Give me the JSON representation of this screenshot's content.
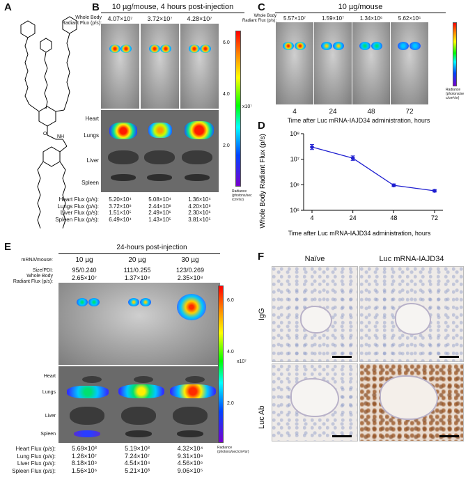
{
  "panels": {
    "A": "A",
    "B": "B",
    "C": "C",
    "D": "D",
    "E": "E",
    "F": "F"
  },
  "panel_b": {
    "title": "10 µg/mouse, 4 hours post-injection",
    "whole_body_label": "Whole Body\nRadiant Flux (p/s):",
    "whole_body_values": [
      "4.07×10⁷",
      "3.72×10⁷",
      "4.28×10⁷"
    ],
    "organs": [
      "Heart",
      "Lungs",
      "Liver",
      "Spleen"
    ],
    "colorbar_ticks": [
      "6.0",
      "4.0",
      "2.0"
    ],
    "colorbar_unit": "x10⁷",
    "colorbar_caption": "Radiance\n(photons/sec\n/cm²/sr)",
    "flux_rows": [
      {
        "label": "Heart Flux (p/s):",
        "values": [
          "5.20×10⁴",
          "5.08×10⁴",
          "1.36×10⁴"
        ]
      },
      {
        "label": "Lungs Flux (p/s):",
        "values": [
          "3.72×10⁸",
          "2.44×10⁸",
          "4.20×10⁸"
        ]
      },
      {
        "label": "Liver Flux (p/s):",
        "values": [
          "1.51×10⁵",
          "2.49×10⁶",
          "2.30×10⁶"
        ]
      },
      {
        "label": "Spleen Flux (p/s):",
        "values": [
          "6.49×10⁴",
          "1.43×10⁵",
          "3.81×10⁵"
        ]
      }
    ]
  },
  "panel_c": {
    "title": "10 µg/mouse",
    "whole_body_label": "Whole Body\nRadiant Flux (p/s):",
    "whole_body_values": [
      "5.57×10⁷",
      "1.59×10⁷",
      "1.34×10⁶",
      "5.62×10⁵"
    ],
    "timepoints": [
      "4",
      "24",
      "48",
      "72"
    ],
    "xlabel": "Time after Luc mRNA-IAJD34 administration, hours",
    "colorbar_caption": "Radiance\n(photons/se\nc/cm²/sr)"
  },
  "panel_e": {
    "title": "24-hours post-injection",
    "dose_label": "mRNA/mouse:",
    "doses": [
      "10 µg",
      "20 µg",
      "30 µg"
    ],
    "size_label": "Size/PDI:",
    "sizes": [
      "95/0.240",
      "111/0.255",
      "123/0.269"
    ],
    "whole_body_label": "Whole Body\nRadiant Flux (p/s):",
    "whole_body_values": [
      "2.65×10⁷",
      "1.37×10⁸",
      "2.35×10⁸"
    ],
    "organs": [
      "Heart",
      "Lungs",
      "Liver",
      "Spleen"
    ],
    "colorbar_ticks": [
      "6.0",
      "4.0",
      "2.0"
    ],
    "colorbar_unit": "x10⁷",
    "colorbar_caption": "Radiance\n(photons/sec/cm²/sr)",
    "flux_rows": [
      {
        "label": "Heart Flux (p/s):",
        "values": [
          "5.69×10³",
          "5.19×10³",
          "4.32×10⁴"
        ]
      },
      {
        "label": "Lung Flux (p/s):",
        "values": [
          "1.26×10⁷",
          "7.24×10⁷",
          "9.31×10⁸"
        ]
      },
      {
        "label": "Liver Flux (p/s):",
        "values": [
          "8.18×10⁵",
          "4.54×10⁴",
          "4.56×10⁶"
        ]
      },
      {
        "label": "Spleen Flux (p/s):",
        "values": [
          "1.56×10⁶",
          "5.21×10³",
          "9.06×10⁵"
        ]
      }
    ]
  },
  "panel_f": {
    "columns": [
      "Naïve",
      "Luc mRNA-IAJD34"
    ],
    "rows": [
      "IgG",
      "Luc Ab"
    ]
  },
  "chart_data": {
    "type": "line",
    "title": "",
    "xlabel": "Time after Luc mRNA-IAJD34 administration, hours",
    "ylabel": "Whole Body Radiant Flux (p/s)",
    "categories": [
      "4",
      "24",
      "48",
      "72"
    ],
    "x": [
      4,
      24,
      48,
      72
    ],
    "series": [
      {
        "values": [
          30000000,
          11000000,
          950000,
          580000
        ],
        "errors_upper": [
          38000000,
          13500000,
          1080000,
          650000
        ],
        "errors_lower": [
          24000000,
          9000000,
          850000,
          520000
        ]
      }
    ],
    "y_scale": "log",
    "ylim": [
      100000,
      100000000
    ],
    "y_ticks": [
      {
        "value": 100000,
        "label": "10⁵"
      },
      {
        "value": 1000000,
        "label": "10⁶"
      },
      {
        "value": 10000000,
        "label": "10⁷"
      },
      {
        "value": 100000000,
        "label": "10⁸"
      }
    ],
    "color": "#1f1fd0",
    "grid": false
  }
}
